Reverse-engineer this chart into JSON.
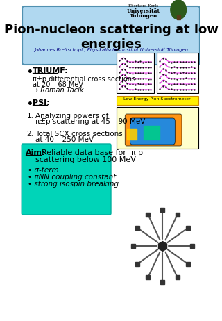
{
  "title_main": "Pion-nucleon scattering at low\nenergies",
  "title_sub": "Johannes Breitschopf , Physikalisches Institut Universität Tübingen",
  "university_line1": "Eberhard Karls",
  "university_line2": "Universität",
  "university_line3": "Tübingen",
  "bullet_triumf_label": "TRIUMF:",
  "bullet_triumf_text1": "π±p differential cross sections",
  "bullet_triumf_text2": "at 20 – 68 MeV",
  "bullet_triumf_text3": "→ Roman Tacik",
  "bullet_psi_label": "PSI:",
  "item1_label": "1.",
  "item1_text1": "Analyzing powers of",
  "item1_text2": "π±̅p scattering at 45 – 90 MeV",
  "item2_label": "2.",
  "item2_text1": "Total SCX cross sections",
  "item2_text2": "at 40 – 250 MeV",
  "aim_label": "Aim:",
  "aim_text1": "Reliable data base for  π p",
  "aim_text2": "scattering below 100 MeV",
  "aim_bullet1": "• σ-term",
  "aim_bullet2": "• πNN coupling constant",
  "aim_bullet3": "• strong isospin breaking",
  "leps_label": "Low Energy Pion Spectrometer",
  "bg_color": "#ffffff",
  "title_box_color": "#b0d8f0",
  "aim_box_color": "#00d4b8"
}
